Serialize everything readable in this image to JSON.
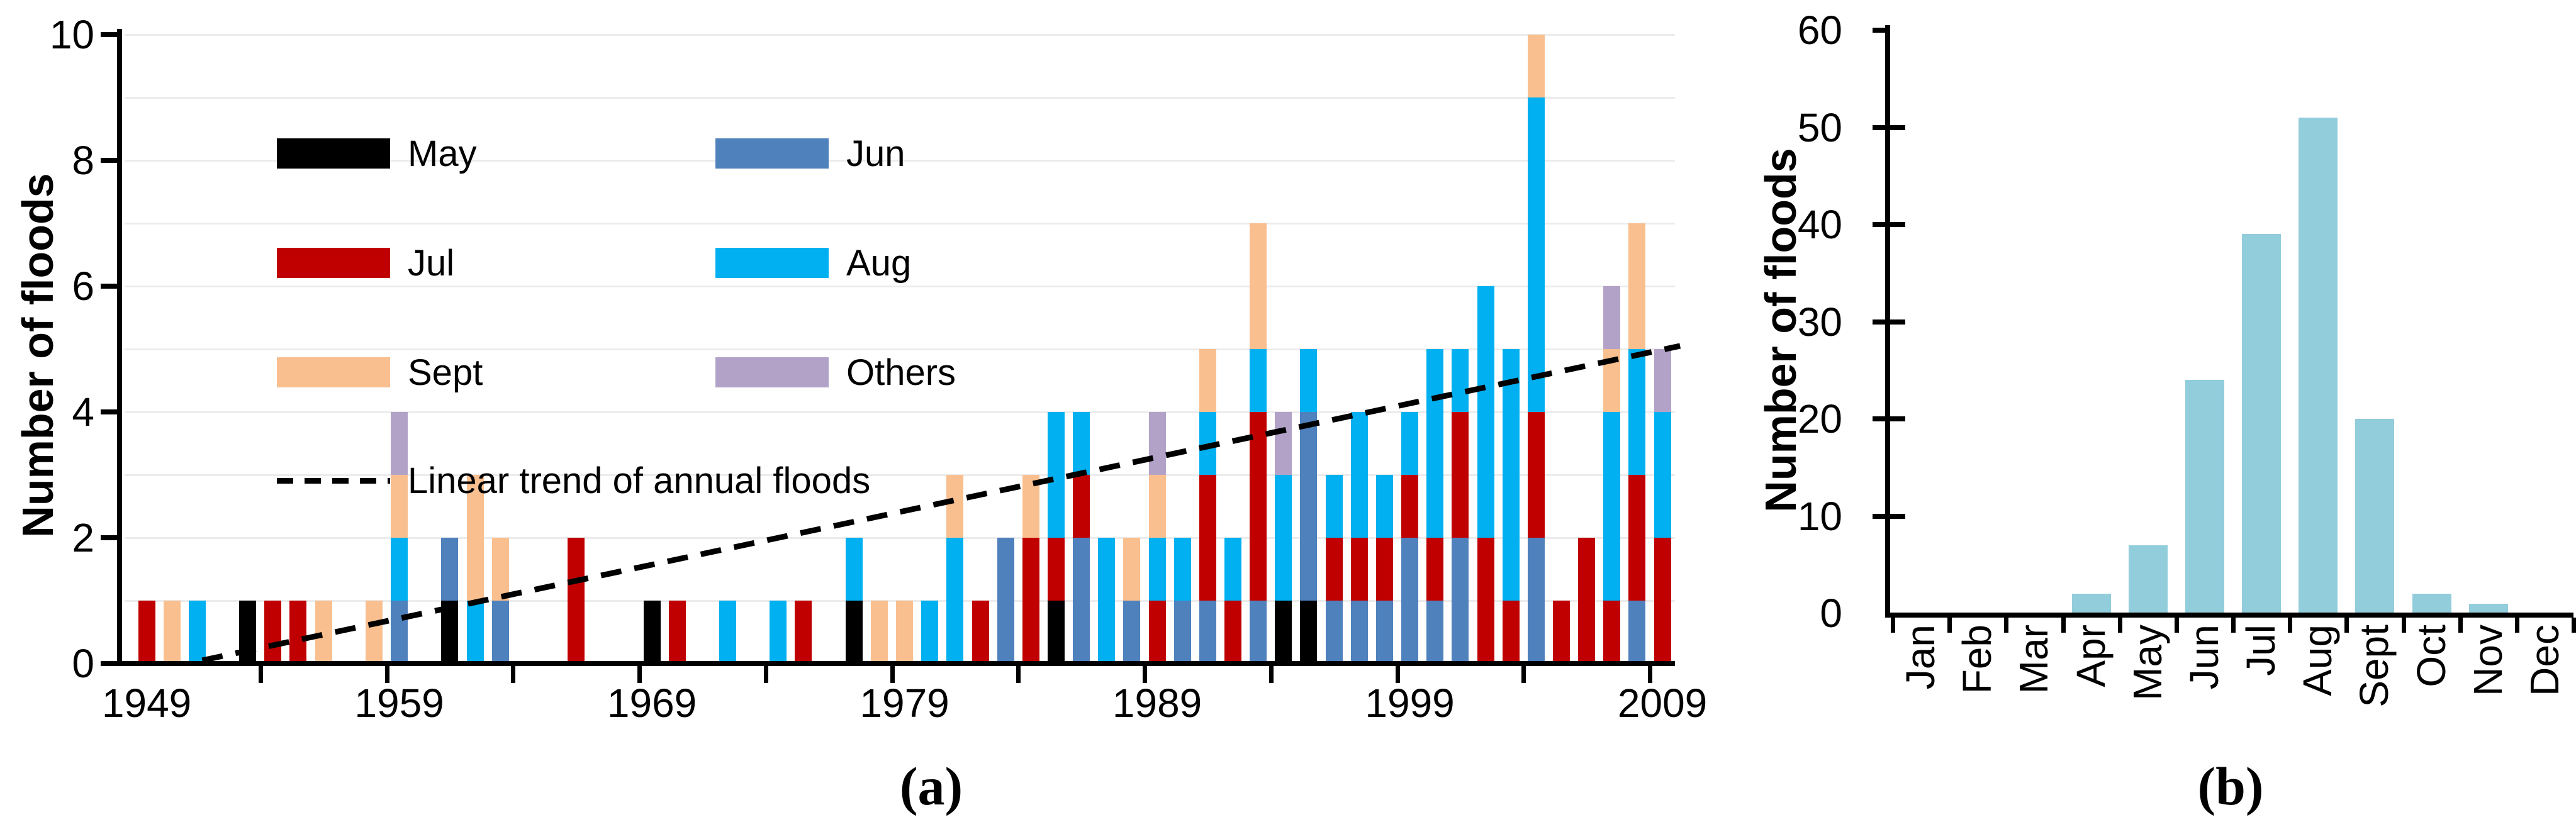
{
  "figure": {
    "caption_a": "(a)",
    "caption_b": "(b)"
  },
  "chart_data": [
    {
      "id": "panel_a",
      "type": "bar",
      "stacked": true,
      "title": "",
      "xlabel": "",
      "ylabel": "Number of floods",
      "ylim": [
        0,
        10
      ],
      "yticks": [
        0,
        2,
        4,
        6,
        8,
        10
      ],
      "grid": "horizontal every 1 unit, light gray",
      "legend_position": "upper-left two columns",
      "xtick_labels": [
        "1949",
        "1959",
        "1969",
        "1979",
        "1989",
        "1999",
        "2009"
      ],
      "categories": [
        1949,
        1950,
        1951,
        1952,
        1953,
        1954,
        1955,
        1956,
        1957,
        1958,
        1959,
        1960,
        1961,
        1962,
        1963,
        1964,
        1965,
        1966,
        1967,
        1968,
        1969,
        1970,
        1971,
        1972,
        1973,
        1974,
        1975,
        1976,
        1977,
        1978,
        1979,
        1980,
        1981,
        1982,
        1983,
        1984,
        1985,
        1986,
        1987,
        1988,
        1989,
        1990,
        1991,
        1992,
        1993,
        1994,
        1995,
        1996,
        1997,
        1998,
        1999,
        2000,
        2001,
        2002,
        2003,
        2004,
        2005,
        2006,
        2007,
        2008,
        2009
      ],
      "series": [
        {
          "name": "May",
          "color": "#000000",
          "values": [
            0,
            0,
            0,
            0,
            1,
            0,
            0,
            0,
            0,
            0,
            0,
            0,
            1,
            0,
            0,
            0,
            0,
            0,
            0,
            0,
            1,
            0,
            0,
            0,
            0,
            0,
            0,
            0,
            1,
            0,
            0,
            0,
            0,
            0,
            0,
            0,
            1,
            0,
            0,
            0,
            0,
            0,
            0,
            0,
            0,
            1,
            1,
            0,
            0,
            0,
            0,
            0,
            0,
            0,
            0,
            0,
            0,
            0,
            0,
            0,
            0
          ]
        },
        {
          "name": "Jun",
          "color": "#4F81BD",
          "values": [
            0,
            0,
            0,
            0,
            0,
            0,
            0,
            0,
            0,
            0,
            1,
            0,
            1,
            0,
            1,
            0,
            0,
            0,
            0,
            0,
            0,
            0,
            0,
            0,
            0,
            0,
            0,
            0,
            0,
            0,
            0,
            0,
            0,
            0,
            2,
            0,
            0,
            2,
            0,
            1,
            0,
            1,
            1,
            0,
            1,
            0,
            3,
            1,
            1,
            1,
            2,
            1,
            2,
            0,
            0,
            2,
            0,
            0,
            0,
            1,
            0
          ]
        },
        {
          "name": "Jul",
          "color": "#C00000",
          "values": [
            1,
            0,
            0,
            0,
            0,
            1,
            1,
            0,
            0,
            0,
            0,
            0,
            0,
            0,
            0,
            0,
            0,
            2,
            0,
            0,
            0,
            1,
            0,
            0,
            0,
            0,
            1,
            0,
            0,
            0,
            0,
            0,
            0,
            1,
            0,
            2,
            1,
            1,
            0,
            0,
            1,
            0,
            2,
            1,
            3,
            0,
            0,
            1,
            1,
            1,
            1,
            1,
            2,
            2,
            1,
            2,
            1,
            2,
            1,
            2,
            2
          ]
        },
        {
          "name": "Aug",
          "color": "#00B0F0",
          "values": [
            0,
            0,
            1,
            0,
            0,
            0,
            0,
            0,
            0,
            0,
            1,
            0,
            0,
            1,
            0,
            0,
            0,
            0,
            0,
            0,
            0,
            0,
            0,
            1,
            0,
            1,
            0,
            0,
            1,
            0,
            0,
            1,
            2,
            0,
            0,
            0,
            2,
            1,
            2,
            0,
            1,
            1,
            1,
            1,
            1,
            2,
            1,
            1,
            2,
            1,
            1,
            3,
            1,
            4,
            4,
            5,
            0,
            0,
            3,
            2,
            2
          ]
        },
        {
          "name": "Sept",
          "color": "#FABF8F",
          "values": [
            0,
            1,
            0,
            0,
            0,
            0,
            0,
            1,
            0,
            1,
            1,
            0,
            0,
            2,
            1,
            0,
            0,
            0,
            0,
            0,
            0,
            0,
            0,
            0,
            0,
            0,
            0,
            0,
            0,
            1,
            1,
            0,
            1,
            0,
            0,
            1,
            0,
            0,
            0,
            1,
            1,
            0,
            1,
            0,
            2,
            0,
            0,
            0,
            0,
            0,
            0,
            0,
            0,
            0,
            0,
            1,
            0,
            0,
            1,
            2,
            0
          ]
        },
        {
          "name": "Others",
          "color": "#B3A2C7",
          "values": [
            0,
            0,
            0,
            0,
            0,
            0,
            0,
            0,
            0,
            0,
            1,
            0,
            0,
            0,
            0,
            0,
            0,
            0,
            0,
            0,
            0,
            0,
            0,
            0,
            0,
            0,
            0,
            0,
            0,
            0,
            0,
            0,
            0,
            0,
            0,
            0,
            0,
            0,
            0,
            0,
            1,
            0,
            0,
            0,
            0,
            1,
            0,
            0,
            0,
            0,
            0,
            0,
            0,
            0,
            0,
            0,
            0,
            0,
            1,
            0,
            1
          ]
        }
      ],
      "trend": {
        "label": "Linear trend of annual floods",
        "style": "dashed",
        "color": "#000000",
        "start": {
          "year": 1951.2,
          "value": 0.05
        },
        "end": {
          "year": 2009.7,
          "value": 5.05
        }
      }
    },
    {
      "id": "panel_b",
      "type": "bar",
      "stacked": false,
      "title": "",
      "xlabel": "",
      "ylabel": "Number of floods",
      "ylim": [
        0,
        60
      ],
      "yticks": [
        0,
        10,
        20,
        30,
        40,
        50,
        60
      ],
      "grid": "none",
      "bar_color": "#92CDDC",
      "categories": [
        "Jan",
        "Feb",
        "Mar",
        "Apr",
        "May",
        "Jun",
        "Jul",
        "Aug",
        "Sept",
        "Oct",
        "Nov",
        "Dec"
      ],
      "values": [
        0,
        0,
        0,
        2,
        7,
        24,
        39,
        51,
        20,
        2,
        1,
        0
      ]
    }
  ]
}
